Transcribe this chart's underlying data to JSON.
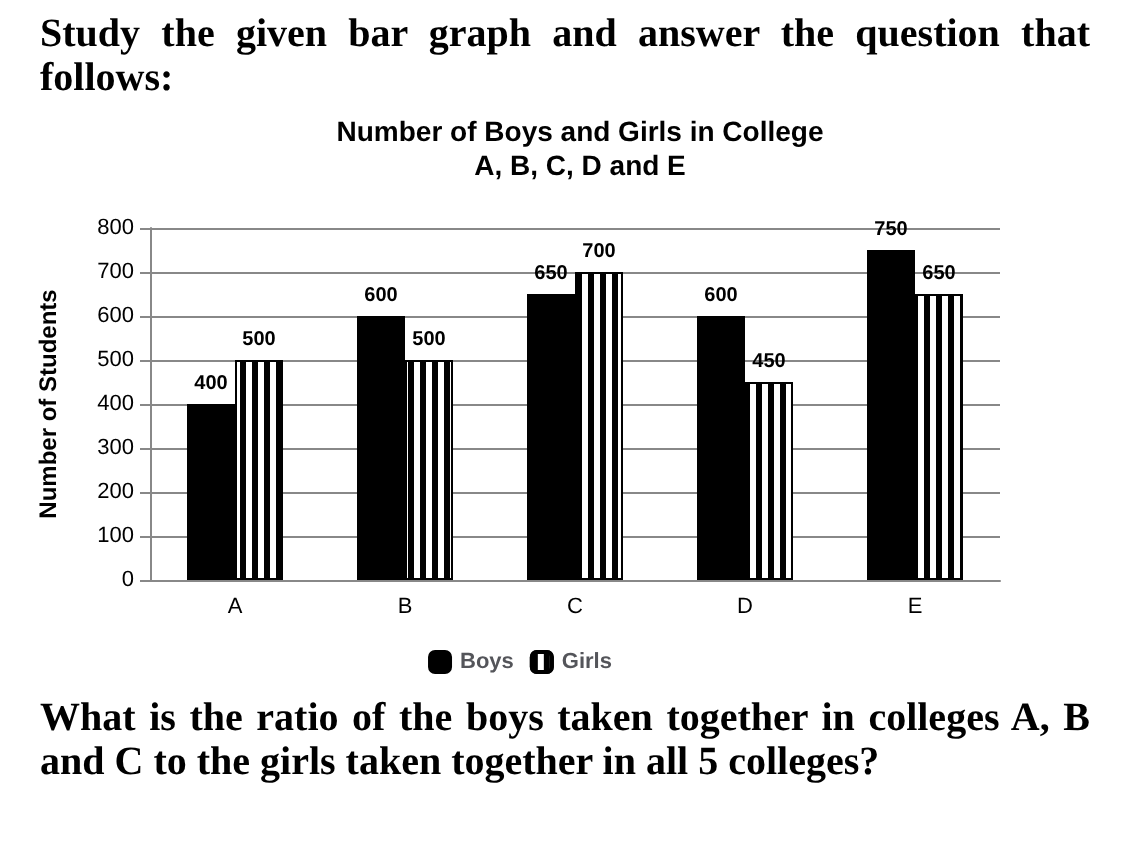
{
  "chart_data": {
    "type": "bar",
    "title": "Number of Boys and Girls in College\nA, B, C, D and E",
    "ylabel": "Number of Students",
    "annotations": [
      "Study the given bar graph and answer the question that follows:",
      "What is the ratio of the boys taken together in colleges A, B and C to the girls taken together in all 5 colleges?"
    ],
    "categories": [
      "A",
      "B",
      "C",
      "D",
      "E"
    ],
    "series": [
      {
        "name": "Boys",
        "color": "#000000",
        "values": [
          400,
          600,
          650,
          600,
          750
        ]
      },
      {
        "name": "Girls",
        "color": "#ffffff",
        "values": [
          500,
          500,
          700,
          450,
          650
        ]
      }
    ],
    "ylim": [
      0,
      800
    ],
    "yticks": [
      0,
      100,
      200,
      300,
      400,
      500,
      600,
      700,
      800
    ],
    "grid": "y",
    "legend": "bottom",
    "data_labels": true
  }
}
